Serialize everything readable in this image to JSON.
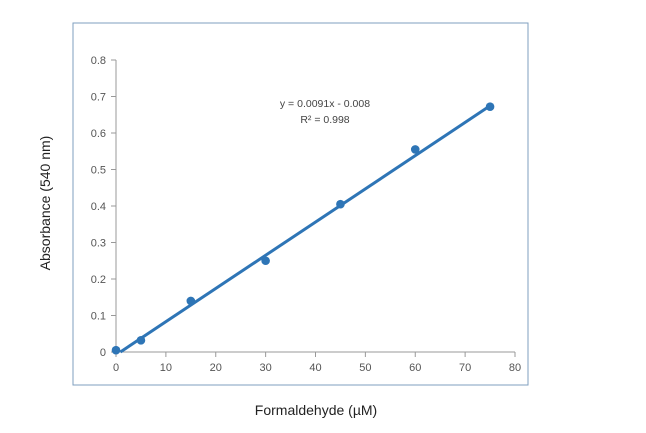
{
  "chart_data": {
    "type": "scatter",
    "xlabel": "Formaldehyde (µM)",
    "ylabel": "Absorbance (540 nm)",
    "xlim": [
      0,
      80
    ],
    "ylim": [
      0,
      0.8
    ],
    "x_ticks": [
      "0",
      "10",
      "20",
      "30",
      "40",
      "50",
      "60",
      "70",
      "80"
    ],
    "y_ticks": [
      "0",
      "0.1",
      "0.2",
      "0.3",
      "0.4",
      "0.5",
      "0.6",
      "0.7",
      "0.8"
    ],
    "series": [
      {
        "x": [
          0,
          5,
          15,
          30,
          45,
          60,
          75
        ],
        "y": [
          0.005,
          0.032,
          0.14,
          0.25,
          0.405,
          0.555,
          0.672
        ]
      }
    ],
    "trendline": {
      "slope": 0.0091,
      "intercept": -0.008,
      "x_range": [
        0.88,
        75
      ]
    },
    "annotations": {
      "equation": "y = 0.0091x - 0.008",
      "r_squared": "R² = 0.998"
    },
    "grid": false,
    "legend": "none",
    "colors": {
      "series": "#2e75b6",
      "frame": "#7f9fbf",
      "axis": "#999999"
    }
  }
}
